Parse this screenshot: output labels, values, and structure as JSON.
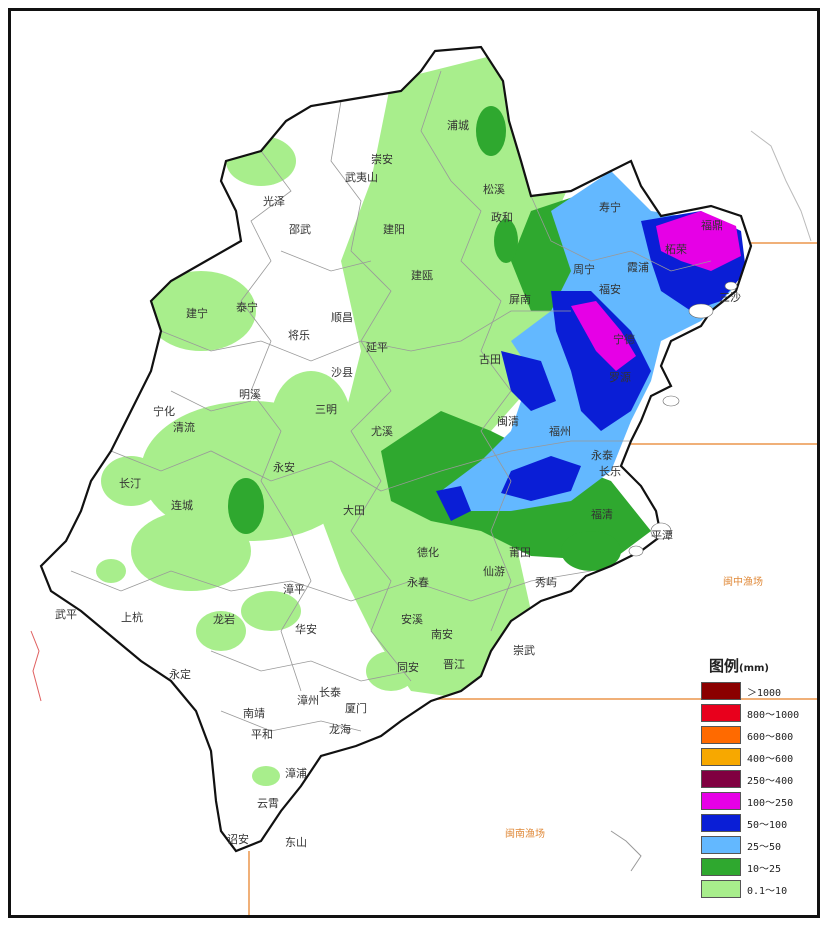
{
  "map": {
    "cities": [
      {
        "name": "浦城"
      },
      {
        "name": "崇安"
      },
      {
        "name": "武夷山"
      },
      {
        "name": "光泽"
      },
      {
        "name": "松溪"
      },
      {
        "name": "政和"
      },
      {
        "name": "寿宁"
      },
      {
        "name": "福鼎"
      },
      {
        "name": "邵武"
      },
      {
        "name": "建阳"
      },
      {
        "name": "柘荣"
      },
      {
        "name": "霞浦"
      },
      {
        "name": "周宁"
      },
      {
        "name": "福安"
      },
      {
        "name": "建瓯"
      },
      {
        "name": "三沙"
      },
      {
        "name": "泰宁"
      },
      {
        "name": "建宁"
      },
      {
        "name": "将乐"
      },
      {
        "name": "顺昌"
      },
      {
        "name": "屏南"
      },
      {
        "name": "宁德"
      },
      {
        "name": "延平"
      },
      {
        "name": "古田"
      },
      {
        "name": "罗源"
      },
      {
        "name": "沙县"
      },
      {
        "name": "明溪"
      },
      {
        "name": "宁化"
      },
      {
        "name": "清流"
      },
      {
        "name": "三明"
      },
      {
        "name": "闽清"
      },
      {
        "name": "福州"
      },
      {
        "name": "尤溪"
      },
      {
        "name": "永泰"
      },
      {
        "name": "长乐"
      },
      {
        "name": "永安"
      },
      {
        "name": "长汀"
      },
      {
        "name": "连城"
      },
      {
        "name": "大田"
      },
      {
        "name": "德化"
      },
      {
        "name": "福清"
      },
      {
        "name": "平潭"
      },
      {
        "name": "永春"
      },
      {
        "name": "仙游"
      },
      {
        "name": "莆田"
      },
      {
        "name": "秀屿"
      },
      {
        "name": "漳平"
      },
      {
        "name": "武平"
      },
      {
        "name": "上杭"
      },
      {
        "name": "龙岩"
      },
      {
        "name": "华安"
      },
      {
        "name": "安溪"
      },
      {
        "name": "南安"
      },
      {
        "name": "崇武"
      },
      {
        "name": "永定"
      },
      {
        "name": "同安"
      },
      {
        "name": "晋江"
      },
      {
        "name": "长泰"
      },
      {
        "name": "漳州"
      },
      {
        "name": "厦门"
      },
      {
        "name": "南靖"
      },
      {
        "name": "龙海"
      },
      {
        "name": "平和"
      },
      {
        "name": "漳浦"
      },
      {
        "name": "云霄"
      },
      {
        "name": "诏安"
      },
      {
        "name": "东山"
      }
    ],
    "sea_areas": [
      {
        "name": "闽中渔场"
      },
      {
        "name": "闽南渔场"
      }
    ]
  },
  "legend": {
    "title": "图例",
    "unit": "(mm)",
    "items": [
      {
        "label": "＞1000",
        "color": "#8b0000"
      },
      {
        "label": "800～1000",
        "color": "#e8001c"
      },
      {
        "label": "600～800",
        "color": "#ff6a00"
      },
      {
        "label": "400～600",
        "color": "#f7a800"
      },
      {
        "label": "250～400",
        "color": "#800040"
      },
      {
        "label": "100～250",
        "color": "#e600e6"
      },
      {
        "label": "50～100",
        "color": "#0a1ed6"
      },
      {
        "label": "25～50",
        "color": "#63b8ff"
      },
      {
        "label": "10～25",
        "color": "#2fa82f"
      },
      {
        "label": "0.1～10",
        "color": "#a8ee8c"
      }
    ]
  }
}
